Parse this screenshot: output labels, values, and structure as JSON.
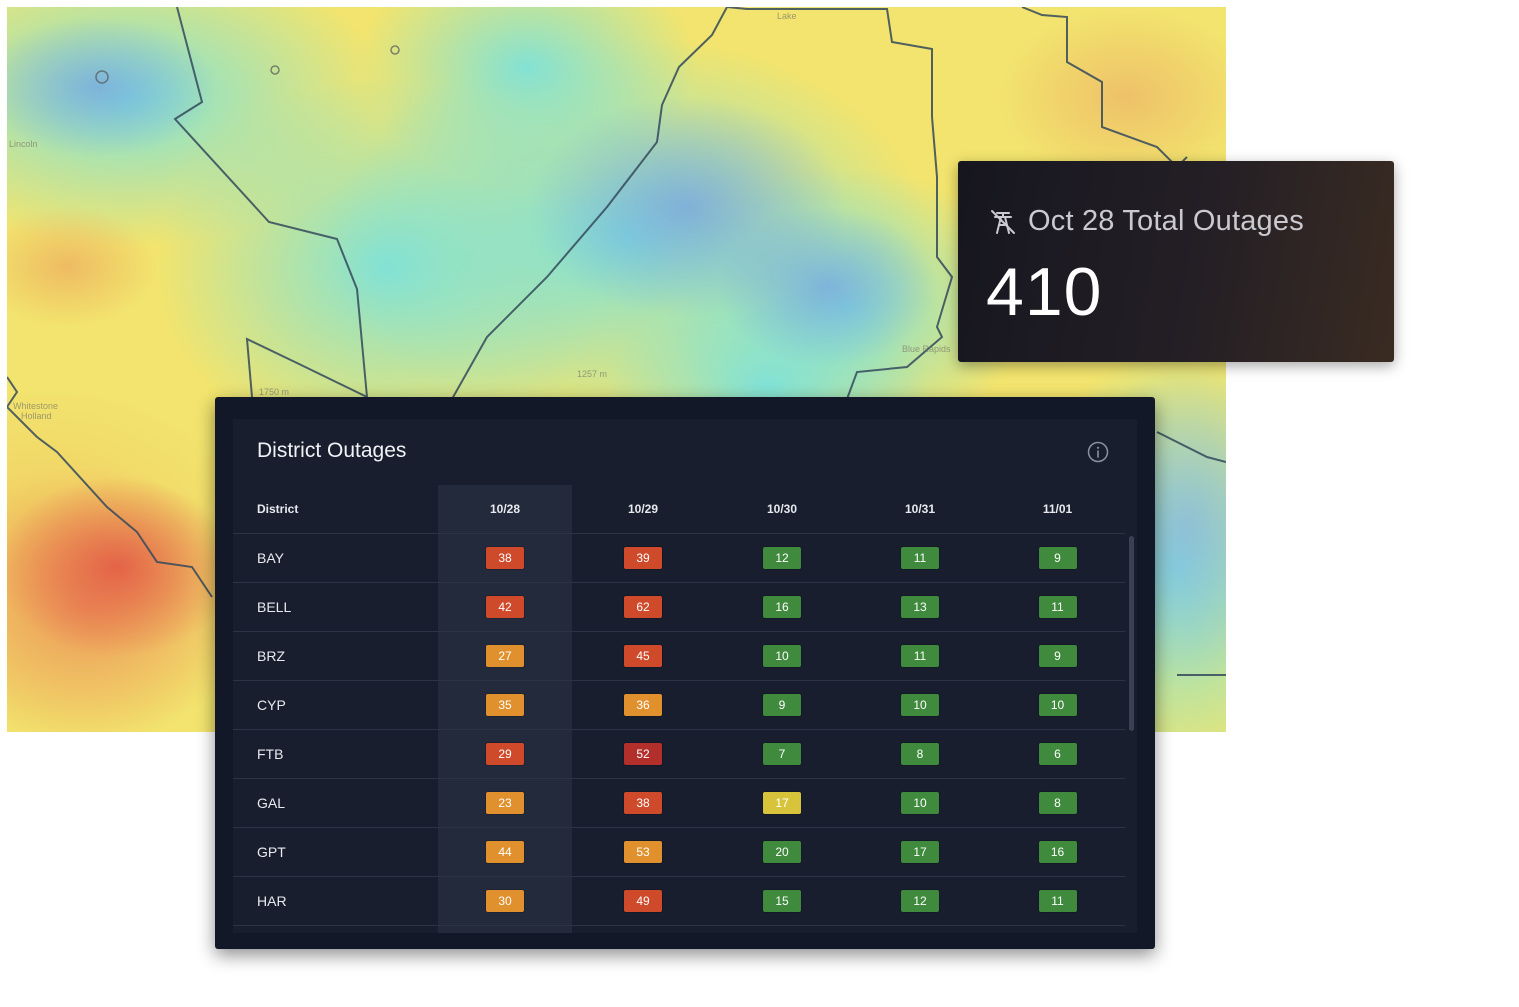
{
  "map": {
    "labels": [
      "Lake",
      "Lincoln",
      "1257 m",
      "1750 m",
      "Blue Rapids",
      "Whitestone",
      "Holland"
    ]
  },
  "total_card": {
    "icon": "power-line-off-icon",
    "title": "Oct 28 Total Outages",
    "value": "410"
  },
  "table": {
    "title": "District Outages",
    "info_icon": "info-icon",
    "columns": [
      "District",
      "10/28",
      "10/29",
      "10/30",
      "10/31",
      "11/01"
    ],
    "colors": {
      "red": "#cf4a2a",
      "darkred": "#b32f2c",
      "orange": "#e0902c",
      "yellow": "#d8c43a",
      "green": "#3f8a3d"
    },
    "rows": [
      {
        "district": "BAY",
        "values": [
          "38",
          "39",
          "12",
          "11",
          "9"
        ],
        "levels": [
          "red",
          "red",
          "green",
          "green",
          "green"
        ]
      },
      {
        "district": "BELL",
        "values": [
          "42",
          "62",
          "16",
          "13",
          "11"
        ],
        "levels": [
          "red",
          "red",
          "green",
          "green",
          "green"
        ]
      },
      {
        "district": "BRZ",
        "values": [
          "27",
          "45",
          "10",
          "11",
          "9"
        ],
        "levels": [
          "orange",
          "red",
          "green",
          "green",
          "green"
        ]
      },
      {
        "district": "CYP",
        "values": [
          "35",
          "36",
          "9",
          "10",
          "10"
        ],
        "levels": [
          "orange",
          "orange",
          "green",
          "green",
          "green"
        ]
      },
      {
        "district": "FTB",
        "values": [
          "29",
          "52",
          "7",
          "8",
          "6"
        ],
        "levels": [
          "red",
          "darkred",
          "green",
          "green",
          "green"
        ]
      },
      {
        "district": "GAL",
        "values": [
          "23",
          "38",
          "17",
          "10",
          "8"
        ],
        "levels": [
          "orange",
          "red",
          "yellow",
          "green",
          "green"
        ]
      },
      {
        "district": "GPT",
        "values": [
          "44",
          "53",
          "20",
          "17",
          "16"
        ],
        "levels": [
          "orange",
          "orange",
          "green",
          "green",
          "green"
        ]
      },
      {
        "district": "HAR",
        "values": [
          "30",
          "49",
          "15",
          "12",
          "11"
        ],
        "levels": [
          "orange",
          "red",
          "green",
          "green",
          "green"
        ]
      }
    ]
  }
}
